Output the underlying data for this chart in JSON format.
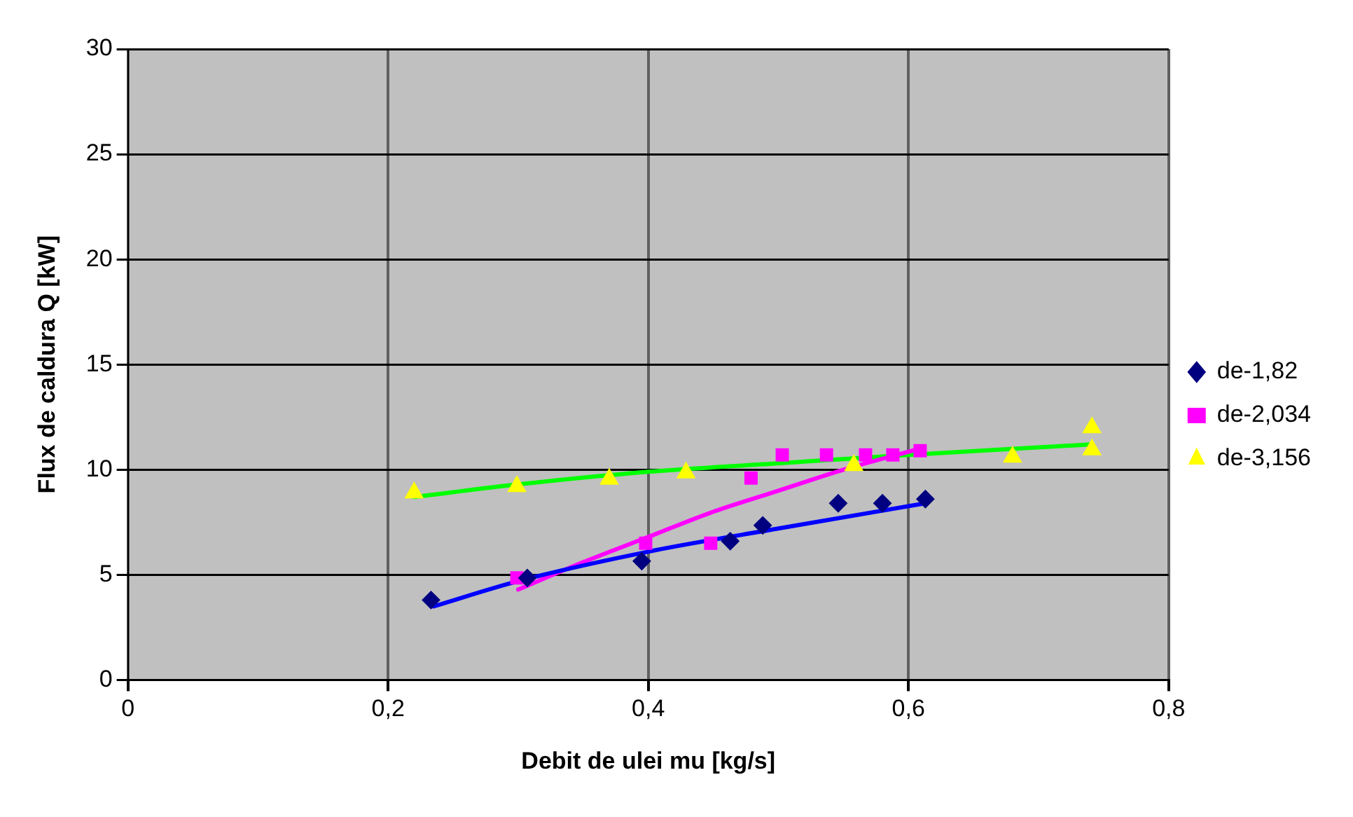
{
  "chart_data": {
    "type": "scatter",
    "xlabel": "Debit de ulei mu [kg/s]",
    "ylabel": "Flux de caldura Q [kW]",
    "xlim": [
      0,
      0.8
    ],
    "xticks": [
      {
        "value": 0,
        "label": "0"
      },
      {
        "value": 0.2,
        "label": "0,2"
      },
      {
        "value": 0.4,
        "label": "0,4"
      },
      {
        "value": 0.6,
        "label": "0,6"
      },
      {
        "value": 0.8,
        "label": "0,8"
      }
    ],
    "ylim": [
      0,
      30
    ],
    "yticks": [
      0,
      5,
      10,
      15,
      20,
      25,
      30
    ],
    "grid": true,
    "legend": "right",
    "series": [
      {
        "name": "de-1,82",
        "color": "#000080",
        "marker": "diamond",
        "x": [
          0.233,
          0.307,
          0.395,
          0.463,
          0.488,
          0.546,
          0.58,
          0.613
        ],
        "values": [
          3.8,
          4.85,
          5.65,
          6.6,
          7.35,
          8.4,
          8.4,
          8.6
        ]
      },
      {
        "name": "de-2,034",
        "color": "#ff00ff",
        "marker": "square",
        "x": [
          0.299,
          0.398,
          0.448,
          0.479,
          0.503,
          0.537,
          0.567,
          0.588,
          0.609
        ],
        "values": [
          4.85,
          6.5,
          6.5,
          9.6,
          10.7,
          10.7,
          10.7,
          10.7,
          10.9
        ]
      },
      {
        "name": "de-3,156",
        "color": "#ffff00",
        "marker": "triangle",
        "x": [
          0.22,
          0.299,
          0.37,
          0.429,
          0.558,
          0.68,
          0.741,
          0.741
        ],
        "values": [
          8.9,
          9.2,
          9.55,
          9.85,
          10.2,
          10.6,
          10.95,
          12.0
        ]
      },
      {
        "type": "line",
        "color": "#0000ff",
        "marker": "none",
        "x": [
          0.235,
          0.3,
          0.4,
          0.5,
          0.613
        ],
        "values": [
          3.5,
          4.7,
          6.1,
          7.2,
          8.4
        ]
      },
      {
        "type": "line",
        "color": "#ff00ff",
        "marker": "none",
        "x": [
          0.3,
          0.35,
          0.4,
          0.45,
          0.5,
          0.55,
          0.609
        ],
        "values": [
          4.3,
          5.6,
          6.8,
          8.0,
          9.0,
          10.0,
          11.0
        ]
      },
      {
        "type": "line",
        "color": "#00ff00",
        "marker": "none",
        "x": [
          0.22,
          0.3,
          0.4,
          0.5,
          0.6,
          0.74
        ],
        "values": [
          8.7,
          9.3,
          9.9,
          10.3,
          10.7,
          11.2
        ]
      }
    ]
  }
}
